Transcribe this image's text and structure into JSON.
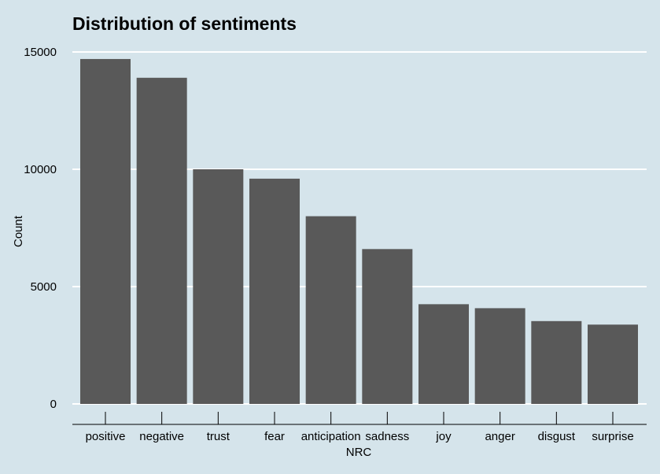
{
  "chart_data": {
    "type": "bar",
    "title": "Distribution of sentiments",
    "xlabel": "NRC",
    "ylabel": "Count",
    "categories": [
      "positive",
      "negative",
      "trust",
      "fear",
      "anticipation",
      "sadness",
      "joy",
      "anger",
      "disgust",
      "surprise"
    ],
    "values": [
      14700,
      13900,
      10000,
      9600,
      8000,
      6600,
      4250,
      4080,
      3530,
      3380
    ],
    "ylim": [
      0,
      15000
    ],
    "yticks": [
      0,
      5000,
      10000,
      15000
    ],
    "grid": true,
    "bar_color": "#595959",
    "background_color": "#d5e4eb",
    "grid_color": "#ffffff"
  }
}
